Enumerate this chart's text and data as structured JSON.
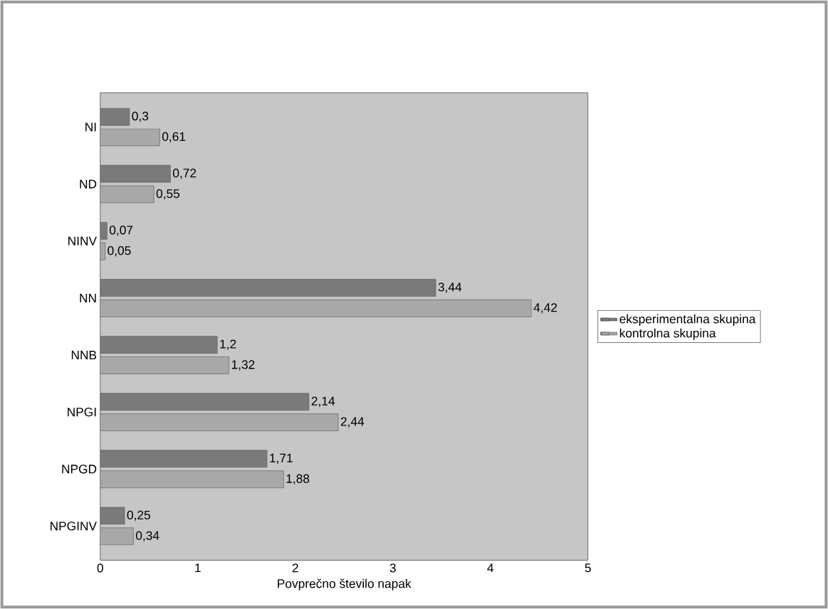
{
  "chart_data": {
    "type": "bar",
    "orientation": "horizontal",
    "xlabel": "Povprečno število napak",
    "categories": [
      "NI",
      "ND",
      "NINV",
      "NN",
      "NNB",
      "NPGI",
      "NPGD",
      "NPGINV"
    ],
    "series": [
      {
        "name": "eksperimentalna skupina",
        "color": "#7a7a7a",
        "values": [
          0.3,
          0.72,
          0.07,
          3.44,
          1.2,
          2.14,
          1.71,
          0.25
        ],
        "value_labels": [
          "0,3",
          "0,72",
          "0,07",
          "3,44",
          "1,2",
          "2,14",
          "1,71",
          "0,25"
        ]
      },
      {
        "name": "kontrolna skupina",
        "color": "#a8a8a8",
        "values": [
          0.61,
          0.55,
          0.05,
          4.42,
          1.32,
          2.44,
          1.88,
          0.34
        ],
        "value_labels": [
          "0,61",
          "0,55",
          "0,05",
          "4,42",
          "1,32",
          "2,44",
          "1,88",
          "0,34"
        ]
      }
    ],
    "xlim": [
      0,
      5
    ],
    "xticks": [
      0,
      1,
      2,
      3,
      4,
      5
    ],
    "legend": "right",
    "grid": false
  }
}
